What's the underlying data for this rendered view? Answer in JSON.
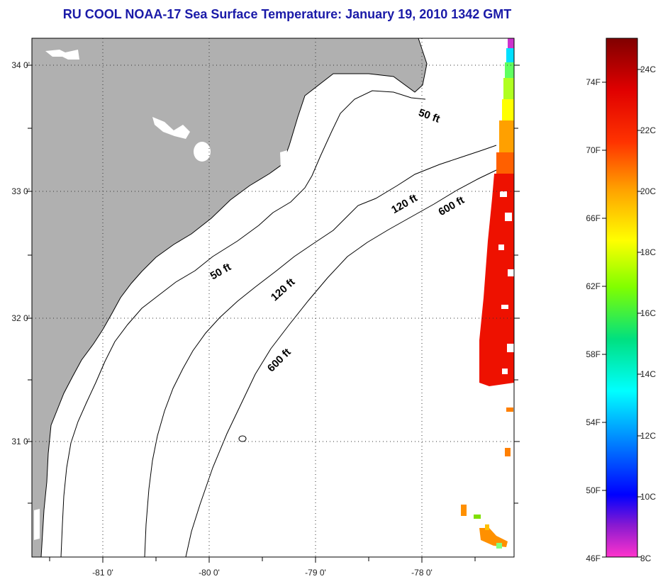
{
  "title": "RU COOL  NOAA-17  Sea Surface Temperature:  January 19, 2010 1342 GMT",
  "map": {
    "land_color": "#b0b0b0",
    "water_color": "#ffffff",
    "lat_labels": [
      "34 0'",
      "33 0'",
      "32 0'",
      "31 0'"
    ],
    "lon_labels": [
      "-81 0'",
      "-80 0'",
      "-79 0'",
      "-78 0'"
    ],
    "contour_labels": [
      {
        "id": "contour-50ft-north",
        "text": "50 ft"
      },
      {
        "id": "contour-50ft-south",
        "text": "50 ft"
      },
      {
        "id": "contour-120ft-north",
        "text": "120 ft"
      },
      {
        "id": "contour-120ft-south",
        "text": "120 ft"
      },
      {
        "id": "contour-600ft-north",
        "text": "600 ft"
      },
      {
        "id": "contour-600ft-south",
        "text": "600 ft"
      }
    ]
  },
  "colorbar": {
    "fahrenheit_labels": [
      "74F",
      "70F",
      "66F",
      "62F",
      "58F",
      "54F",
      "50F",
      "46F"
    ],
    "celsius_labels": [
      "24C",
      "22C",
      "20C",
      "18C",
      "16C",
      "14C",
      "12C",
      "10C",
      "8C"
    ],
    "colors": [
      "#ff33cc",
      "#8b1ad0",
      "#0000ff",
      "#0080ff",
      "#00ffff",
      "#00e080",
      "#80ff00",
      "#ffff00",
      "#ffa000",
      "#ff3300",
      "#e00000",
      "#800000"
    ]
  }
}
